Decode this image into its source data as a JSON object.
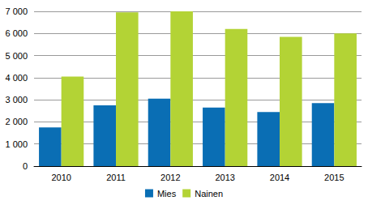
{
  "chart_data": {
    "type": "bar",
    "categories": [
      "2010",
      "2011",
      "2012",
      "2013",
      "2014",
      "2015"
    ],
    "series": [
      {
        "name": "Mies",
        "color": "#0a6eb4",
        "values": [
          1750,
          2750,
          3050,
          2650,
          2450,
          2850
        ]
      },
      {
        "name": "Nainen",
        "color": "#b3d335",
        "values": [
          4050,
          6950,
          7000,
          6200,
          5850,
          6000
        ]
      }
    ],
    "ylim": [
      0,
      7000
    ],
    "yticks": [
      0,
      {
        "value": 1000,
        "label": "1 000"
      },
      {
        "value": 2000,
        "label": "2 000"
      },
      {
        "value": 3000,
        "label": "3 000"
      },
      {
        "value": 4000,
        "label": "4 000"
      },
      {
        "value": 5000,
        "label": "5 000"
      },
      {
        "value": 6000,
        "label": "6 000"
      },
      {
        "value": 7000,
        "label": "7 000"
      }
    ],
    "grid": true,
    "legend": "bottom"
  }
}
